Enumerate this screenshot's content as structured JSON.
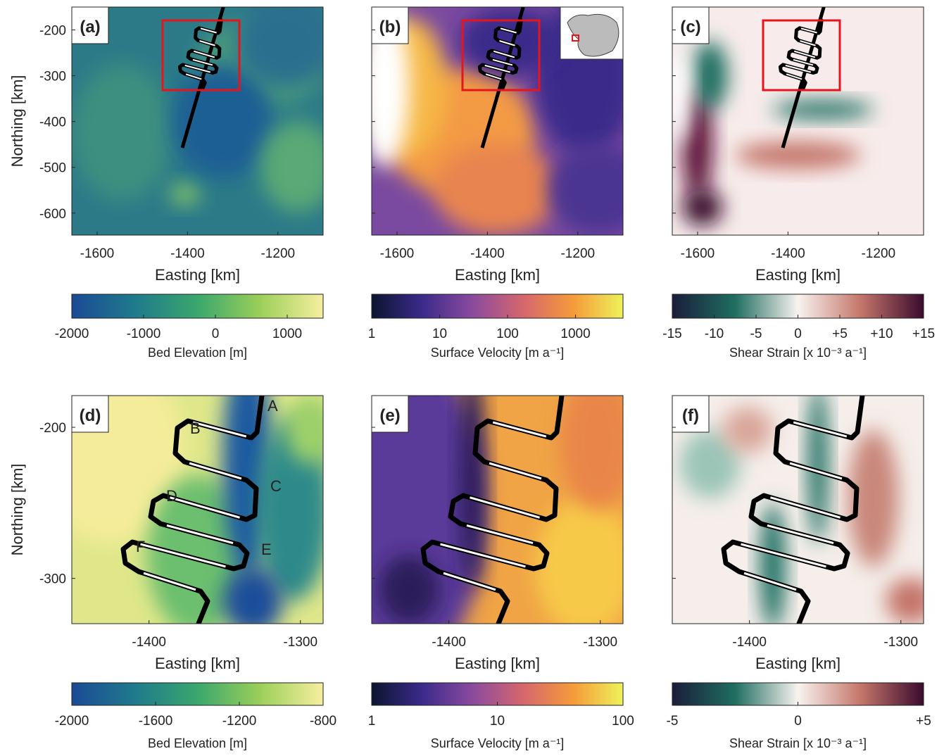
{
  "chart_data": [
    {
      "type": "map",
      "panel_label": "(a)",
      "xlabel": "Easting [km]",
      "ylabel": "Northing [km]",
      "xlim": [
        -1656,
        -1100
      ],
      "ylim": [
        -648,
        -150
      ],
      "xticks": [
        -1600,
        -1400,
        -1200
      ],
      "yticks": [
        -600,
        -500,
        -400,
        -300,
        -200
      ],
      "colorbar": {
        "label": "Bed Elevation [m]",
        "lim": [
          -2000,
          1500
        ],
        "ticks": [
          -2000,
          -1000,
          0,
          1000
        ],
        "log": false,
        "colors": [
          "#1b4a96",
          "#1f7a8c",
          "#3aa76d",
          "#9ccf5a",
          "#f6ef9f"
        ]
      }
    },
    {
      "type": "map",
      "panel_label": "(b)",
      "xlabel": "Easting [km]",
      "xlim": [
        -1656,
        -1100
      ],
      "ylim": [
        -648,
        -150
      ],
      "xticks": [
        -1600,
        -1400,
        -1200
      ],
      "yticks": [
        -600,
        -500,
        -400,
        -300,
        -200
      ],
      "colorbar": {
        "label": "Surface Velocity [m a⁻¹]",
        "lim": [
          1,
          5000
        ],
        "ticks": [
          1,
          10,
          100,
          1000
        ],
        "log": true,
        "colors": [
          "#0b1530",
          "#3b2a8a",
          "#8a4a9e",
          "#d5666e",
          "#f59a3a",
          "#eef25a"
        ]
      }
    },
    {
      "type": "map",
      "panel_label": "(c)",
      "xlabel": "Easting [km]",
      "xlim": [
        -1656,
        -1100
      ],
      "ylim": [
        -648,
        -150
      ],
      "xticks": [
        -1600,
        -1400,
        -1200
      ],
      "yticks": [
        -600,
        -500,
        -400,
        -300,
        -200
      ],
      "colorbar": {
        "label": "Shear Strain [x 10⁻³ a⁻¹]",
        "lim": [
          -15,
          15
        ],
        "log": false,
        "ticks": [
          -15,
          -10,
          -5,
          0,
          {
            "value": 5,
            "label": "+5"
          },
          {
            "value": 10,
            "label": "+10"
          },
          {
            "value": 15,
            "label": "+15"
          }
        ],
        "colors": [
          "#1a1d3a",
          "#1f6e60",
          "#f8f3f0",
          "#c4766a",
          "#3a0a2e"
        ]
      }
    },
    {
      "type": "map",
      "panel_label": "(d)",
      "xlabel": "Easting [km]",
      "ylabel": "Northing [km]",
      "xlim": [
        -1451,
        -1285
      ],
      "ylim": [
        -330,
        -179
      ],
      "xticks": [
        -1400,
        -1300
      ],
      "yticks": [
        -300,
        -200
      ],
      "annotations": [
        "A",
        "B",
        "C",
        "D",
        "E",
        "F"
      ],
      "colorbar": {
        "label": "Bed Elevation [m]",
        "lim": [
          -2000,
          -800
        ],
        "ticks": [
          -2000,
          -1600,
          -1200,
          -800
        ],
        "log": false,
        "colors": [
          "#1b4a96",
          "#1f7a8c",
          "#3aa76d",
          "#9ccf5a",
          "#f6ef9f"
        ]
      }
    },
    {
      "type": "map",
      "panel_label": "(e)",
      "xlabel": "Easting [km]",
      "xlim": [
        -1451,
        -1285
      ],
      "ylim": [
        -330,
        -179
      ],
      "xticks": [
        -1400,
        -1300
      ],
      "yticks": [
        -300,
        -200
      ],
      "colorbar": {
        "label": "Surface Velocity [m a⁻¹]",
        "lim": [
          1,
          100
        ],
        "ticks": [
          1,
          10,
          100
        ],
        "log": true,
        "colors": [
          "#0b1530",
          "#3b2a8a",
          "#8a4a9e",
          "#d5666e",
          "#f59a3a",
          "#eef25a"
        ]
      }
    },
    {
      "type": "map",
      "panel_label": "(f)",
      "xlabel": "Easting [km]",
      "xlim": [
        -1451,
        -1285
      ],
      "ylim": [
        -330,
        -179
      ],
      "xticks": [
        -1400,
        -1300
      ],
      "yticks": [
        -300,
        -200
      ],
      "colorbar": {
        "label": "Shear Strain [x 10⁻³ a⁻¹]",
        "lim": [
          -5,
          5
        ],
        "log": false,
        "ticks": [
          -5,
          0,
          {
            "value": 5,
            "label": "+5"
          }
        ],
        "colors": [
          "#1a1d3a",
          "#1f6e60",
          "#f8f3f0",
          "#c4766a",
          "#3a0a2e"
        ]
      }
    }
  ]
}
